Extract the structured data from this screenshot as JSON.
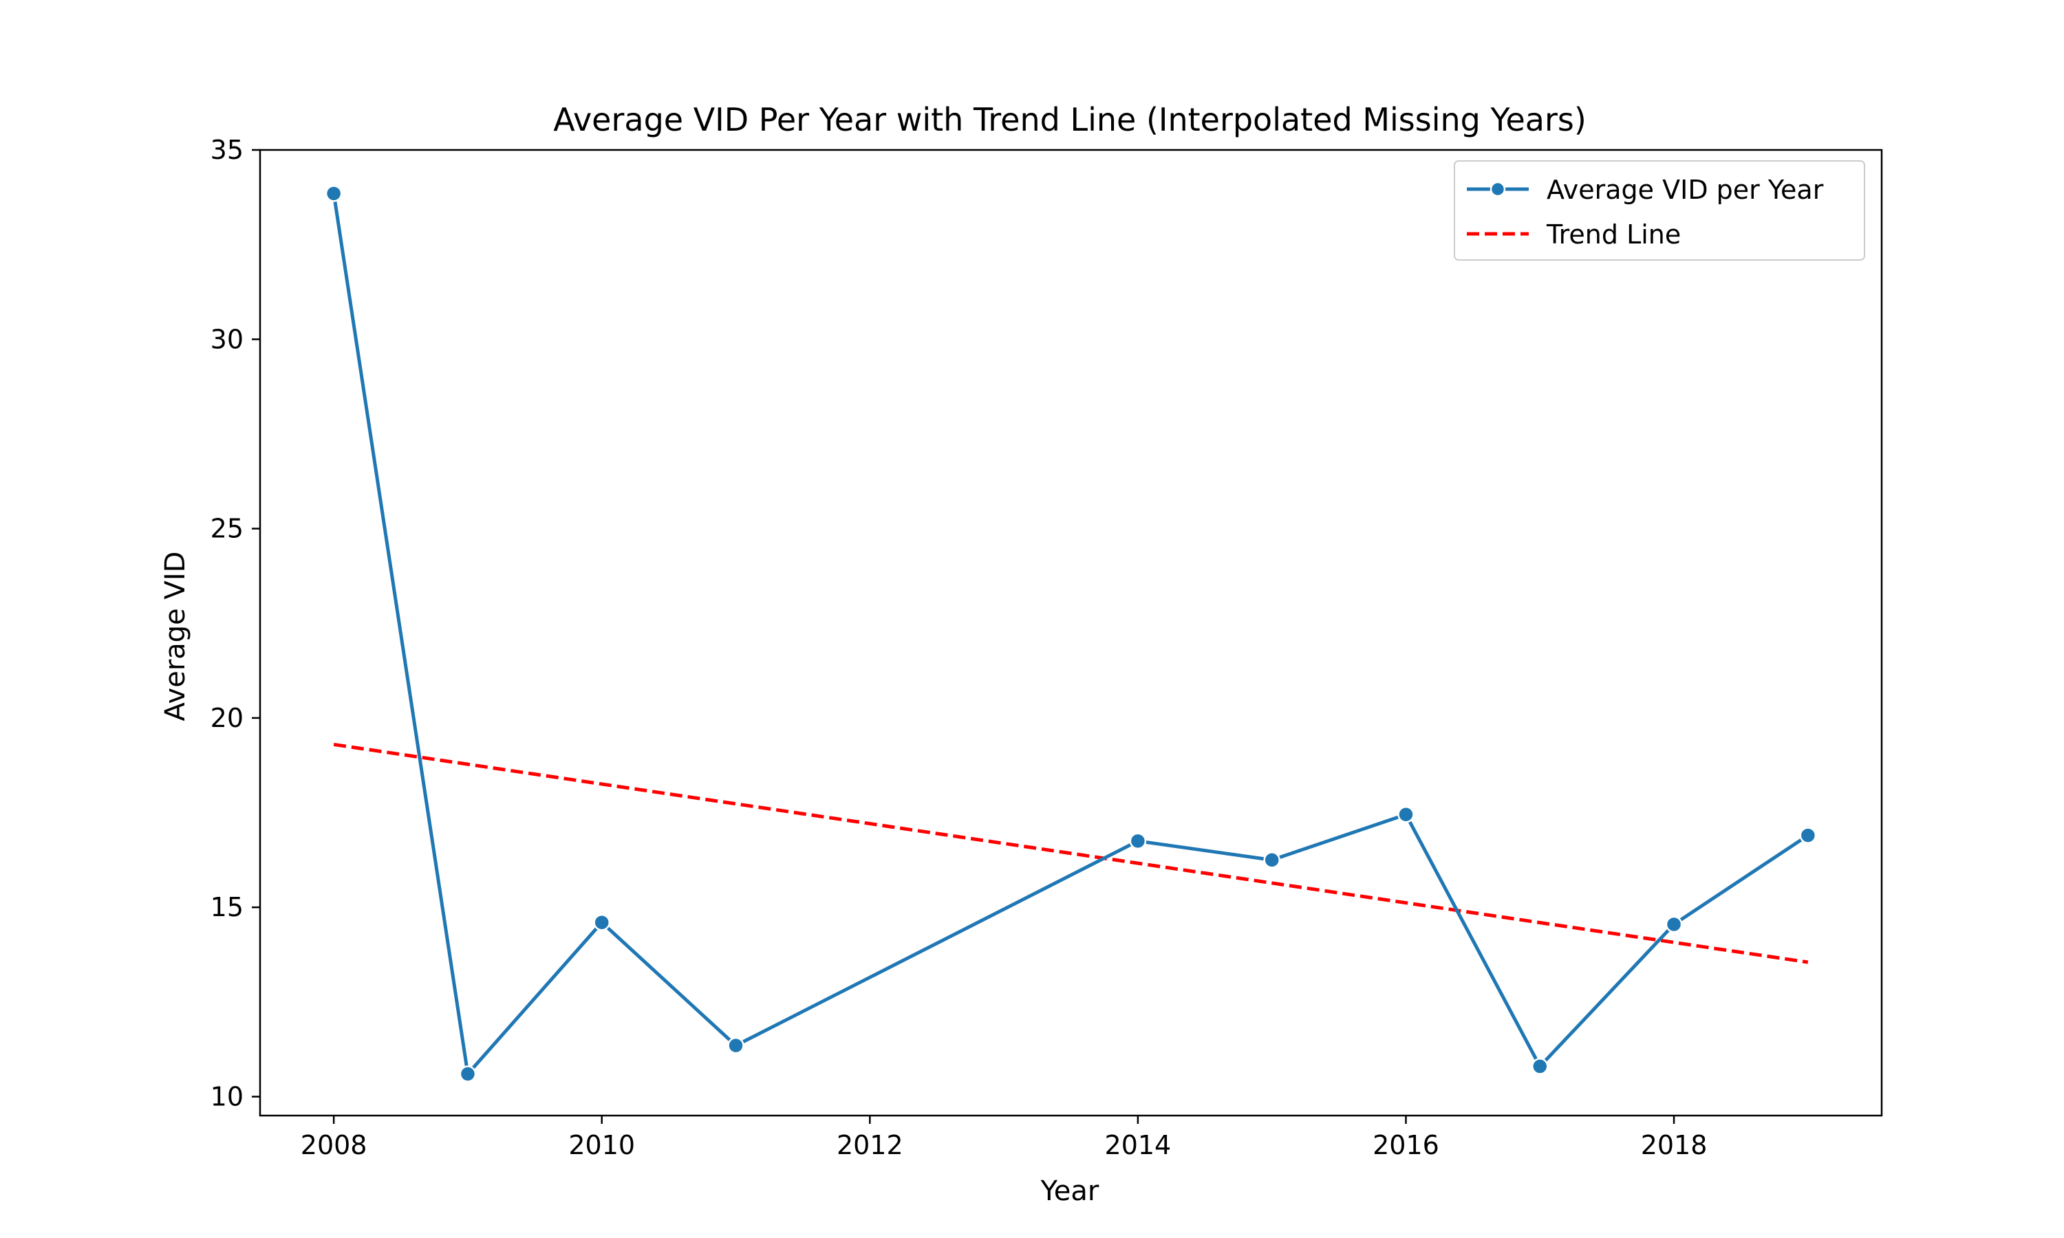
{
  "chart_data": {
    "type": "line",
    "title": "Average VID Per Year with Trend Line (Interpolated Missing Years)",
    "xlabel": "Year",
    "ylabel": "Average VID",
    "xlim": [
      2007.45,
      2019.55
    ],
    "ylim": [
      9.5,
      35.0
    ],
    "xticks": [
      2008,
      2010,
      2012,
      2014,
      2016,
      2018
    ],
    "yticks": [
      10,
      15,
      20,
      25,
      30,
      35
    ],
    "grid": false,
    "legend_position": "top-right",
    "series": [
      {
        "name": "Average VID per Year",
        "color": "#1f77b4",
        "style": "solid",
        "marker": "circle",
        "x": [
          2008,
          2009,
          2010,
          2011,
          2014,
          2015,
          2016,
          2017,
          2018,
          2019
        ],
        "y": [
          33.85,
          10.6,
          14.6,
          11.35,
          16.75,
          16.25,
          17.45,
          10.8,
          14.55,
          16.9
        ]
      },
      {
        "name": "Trend Line",
        "color": "#ff0000",
        "style": "dashed",
        "marker": "none",
        "x": [
          2008,
          2019
        ],
        "y": [
          19.3,
          13.55
        ]
      }
    ]
  }
}
